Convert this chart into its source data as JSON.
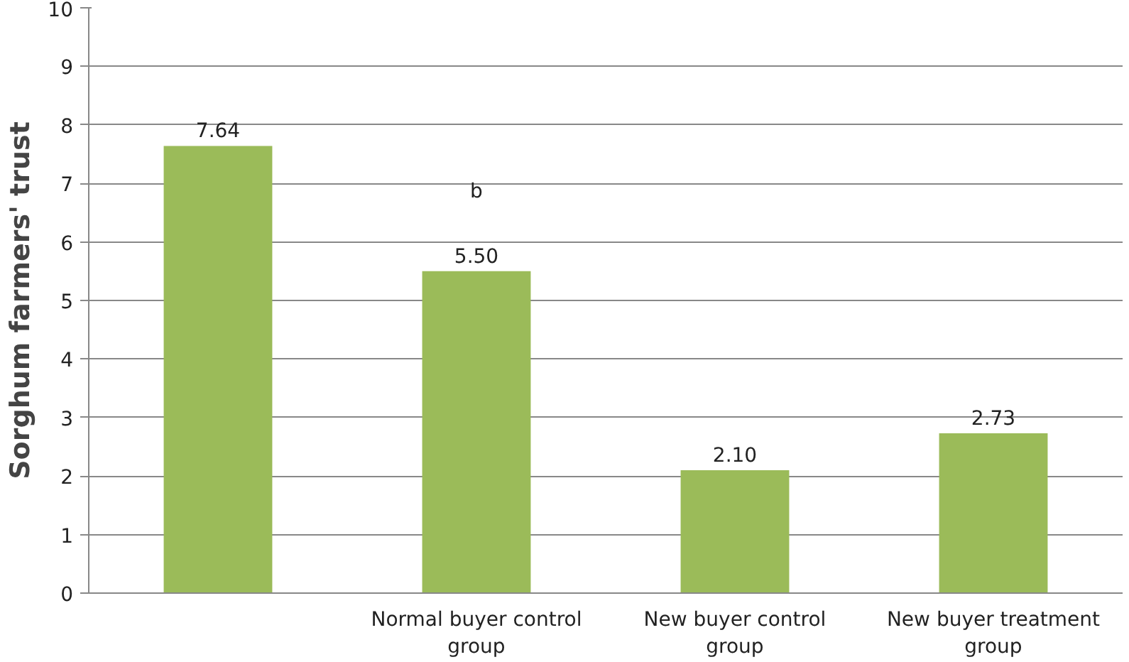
{
  "chart_data": {
    "type": "bar",
    "ylabel": "Sorghum farmers' trust",
    "categories": [
      null,
      "Normal buyer control group",
      "New buyer control group",
      "New buyer treatment group"
    ],
    "values": [
      7.64,
      5.5,
      2.1,
      2.73
    ],
    "value_labels": [
      "7.64",
      "5.50",
      "2.10",
      "2.73"
    ],
    "color": "#9bbb59",
    "ylim": [
      0,
      10
    ],
    "yticks": [
      0,
      1,
      2,
      3,
      4,
      5,
      6,
      7,
      8,
      9,
      10
    ],
    "grid": "y",
    "annotations": [
      "b"
    ]
  }
}
